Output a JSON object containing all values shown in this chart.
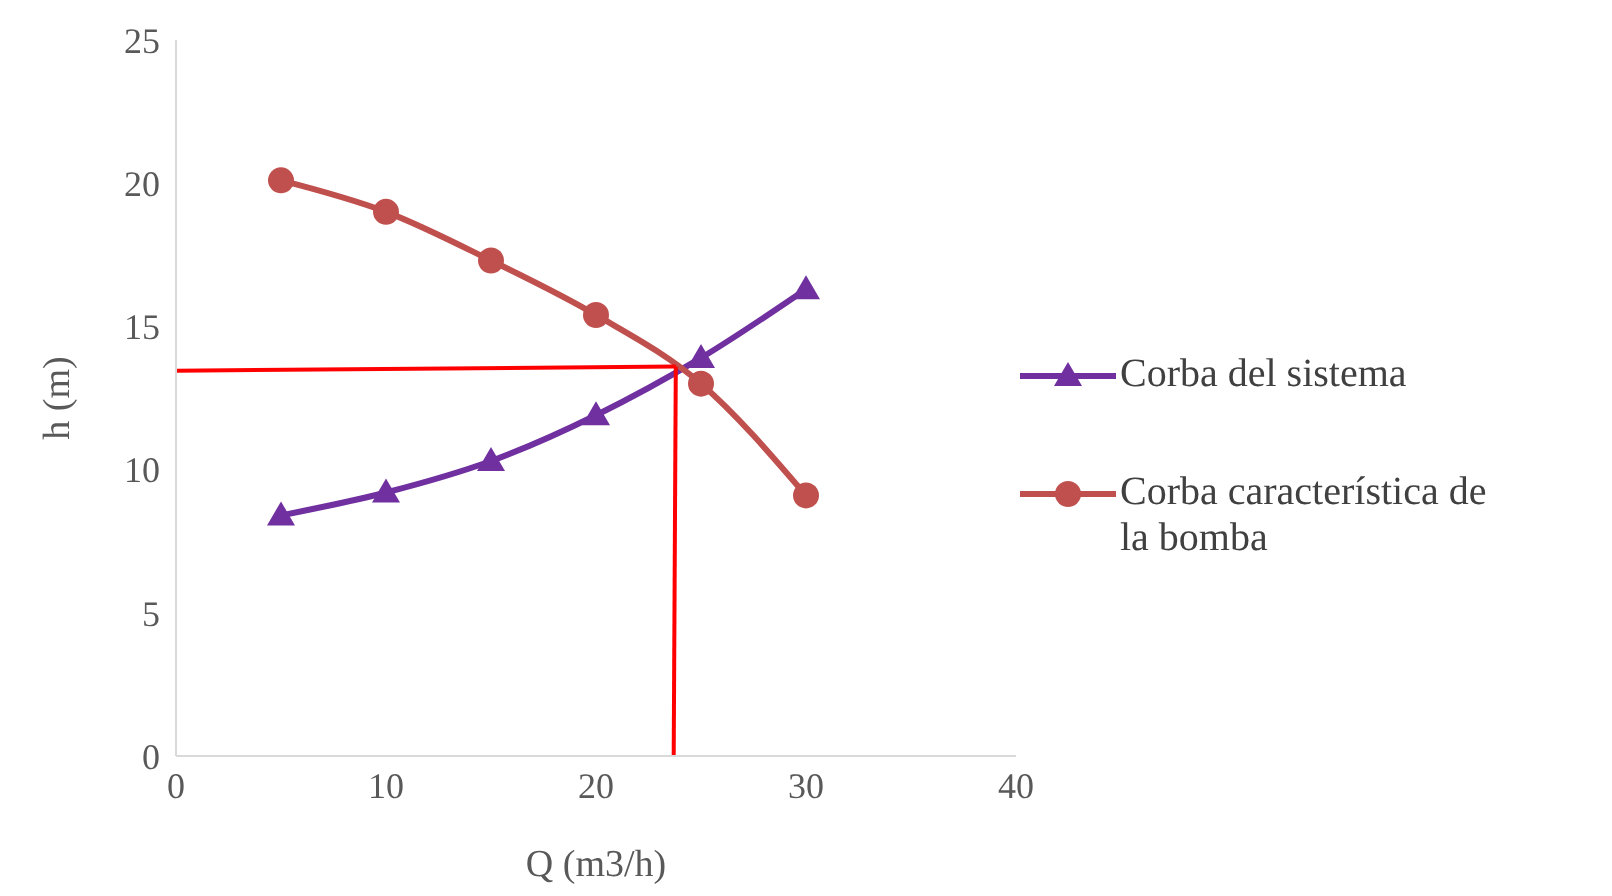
{
  "chart_data": {
    "type": "line",
    "xlabel": "Q (m3/h)",
    "ylabel": "h (m)",
    "xlim": [
      0,
      40
    ],
    "xticks": [
      0,
      10,
      20,
      30,
      40
    ],
    "ylim": [
      0,
      25
    ],
    "yticks": [
      0,
      5,
      10,
      15,
      20,
      25
    ],
    "grid": false,
    "legend": "right",
    "series": [
      {
        "name": "Corba del sistema",
        "color": "#7030a0",
        "marker": "triangle",
        "x": [
          5,
          10,
          15,
          20,
          25,
          30
        ],
        "values": [
          8.4,
          9.2,
          10.3,
          11.9,
          13.9,
          16.3
        ]
      },
      {
        "name": "Corba característica de la bomba",
        "color": "#c0504d",
        "marker": "circle",
        "x": [
          5,
          10,
          15,
          20,
          25,
          30
        ],
        "values": [
          20.1,
          19.0,
          17.3,
          15.4,
          13.0,
          9.1
        ]
      },
      {
        "color": "#ff0000",
        "marker": "none",
        "x": [
          0,
          23.8
        ],
        "values": [
          13.45,
          13.6
        ]
      },
      {
        "color": "#ff0000",
        "marker": "none",
        "x": [
          23.7,
          23.8
        ],
        "values": [
          0,
          13.6
        ]
      }
    ]
  }
}
